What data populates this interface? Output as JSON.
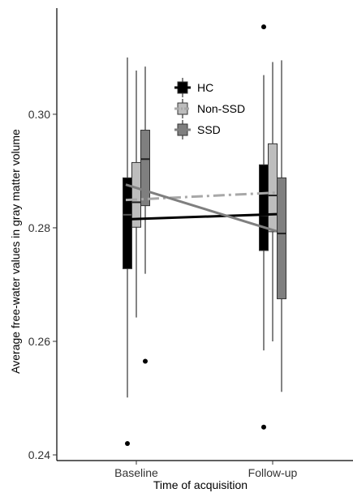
{
  "chart_data": {
    "type": "box",
    "xlabel": "Time of acquisition",
    "ylabel": "Average free-water values in gray matter volume",
    "categories": [
      "Baseline",
      "Follow-up"
    ],
    "ylim": [
      0.239,
      0.3187
    ],
    "yticks": [
      "0.24",
      "0.26",
      "0.28",
      "0.30"
    ],
    "legend_position": "top-center",
    "grid": false,
    "series": [
      {
        "name": "HC",
        "fill": "#000000",
        "line_color": "#000000",
        "line_style": "solid",
        "boxes": [
          {
            "whisker_low": 0.2501,
            "q1": 0.2728,
            "median": 0.2823,
            "q3": 0.2888,
            "whisker_high": 0.31,
            "outliers": [
              0.242
            ]
          },
          {
            "whisker_low": 0.2584,
            "q1": 0.276,
            "median": 0.2822,
            "q3": 0.2911,
            "whisker_high": 0.3069,
            "outliers": [
              0.2449,
              0.3154
            ]
          }
        ],
        "means": [
          0.2815,
          0.2824
        ]
      },
      {
        "name": "Non-SSD",
        "fill": "#bdbdbd",
        "line_color": "#a8a8a8",
        "line_style": "dashdot",
        "boxes": [
          {
            "whisker_low": 0.2642,
            "q1": 0.2801,
            "median": 0.2845,
            "q3": 0.2915,
            "whisker_high": 0.3077,
            "outliers": []
          },
          {
            "whisker_low": 0.26,
            "q1": 0.2793,
            "median": 0.2857,
            "q3": 0.2948,
            "whisker_high": 0.3092,
            "outliers": []
          }
        ],
        "means": [
          0.2849,
          0.2862
        ]
      },
      {
        "name": "SSD",
        "fill": "#7f7f7f",
        "line_color": "#7f7f7f",
        "line_style": "solid",
        "boxes": [
          {
            "whisker_low": 0.2719,
            "q1": 0.2839,
            "median": 0.2921,
            "q3": 0.2972,
            "whisker_high": 0.3084,
            "outliers": [
              0.2565
            ]
          },
          {
            "whisker_low": 0.2511,
            "q1": 0.2675,
            "median": 0.279,
            "q3": 0.2888,
            "whisker_high": 0.3095,
            "outliers": []
          }
        ],
        "means": [
          0.2876,
          0.2794
        ]
      }
    ]
  }
}
